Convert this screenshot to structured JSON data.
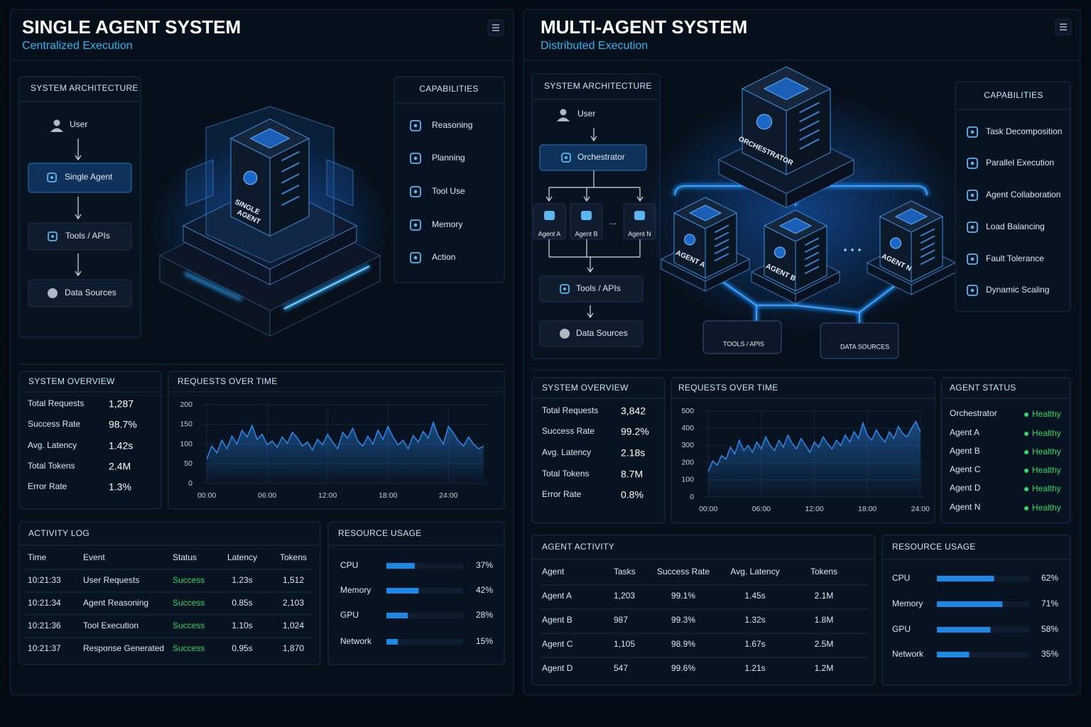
{
  "left": {
    "title": "SINGLE AGENT SYSTEM",
    "subtitle": "Centralized Execution",
    "architecture": {
      "title": "SYSTEM ARCHITECTURE",
      "nodes": [
        "User",
        "Single Agent",
        "Tools / APIs",
        "Data Sources"
      ]
    },
    "illustration": {
      "labels": [
        "SINGLE",
        "AGENT"
      ]
    },
    "capabilities": {
      "title": "CAPABILITIES",
      "items": [
        "Reasoning",
        "Planning",
        "Tool Use",
        "Memory",
        "Action"
      ]
    },
    "overview": {
      "title": "SYSTEM OVERVIEW",
      "rows": [
        [
          "Total Requests",
          "1,287"
        ],
        [
          "Success Rate",
          "98.7%"
        ],
        [
          "Avg. Latency",
          "1.42s"
        ],
        [
          "Total Tokens",
          "2.4M"
        ],
        [
          "Error Rate",
          "1.3%"
        ]
      ]
    },
    "requests_over_time": {
      "type": "line",
      "title": "REQUESTS OVER TIME",
      "color": "#2f8df5",
      "x": [
        0,
        0.5,
        1,
        1.5,
        2,
        2.5,
        3,
        3.5,
        4,
        4.5,
        5,
        5.5,
        6,
        6.5,
        7,
        7.5,
        8,
        8.5,
        9,
        9.5,
        10,
        10.5,
        11,
        11.5,
        12,
        12.5,
        13,
        13.5,
        14,
        14.5,
        15,
        15.5,
        16,
        16.5,
        17,
        17.5,
        18,
        18.5,
        19,
        19.5,
        20,
        20.5,
        21,
        21.5,
        22,
        22.5,
        23,
        23.5,
        24,
        24.5,
        25,
        25.5,
        26,
        26.5,
        27,
        27.5
      ],
      "values": [
        62,
        95,
        78,
        110,
        88,
        120,
        100,
        135,
        118,
        147,
        112,
        125,
        98,
        108,
        92,
        118,
        102,
        130,
        115,
        95,
        105,
        85,
        112,
        98,
        125,
        105,
        88,
        130,
        115,
        140,
        108,
        95,
        120,
        100,
        135,
        112,
        145,
        118,
        98,
        110,
        88,
        122,
        105,
        132,
        115,
        155,
        120,
        100,
        145,
        128,
        108,
        95,
        118,
        100,
        88,
        95
      ],
      "xlim": [
        -0.5,
        28
      ],
      "ylim": [
        0,
        200
      ],
      "yticks": [
        0,
        50,
        100,
        150,
        200
      ],
      "xticks": [
        {
          "value": 0,
          "label": "00:00"
        },
        {
          "value": 6,
          "label": "06:00"
        },
        {
          "value": 12,
          "label": "12:00"
        },
        {
          "value": 18,
          "label": "18:00"
        },
        {
          "value": 24,
          "label": "24:00"
        }
      ]
    },
    "activity_log": {
      "title": "ACTIVITY LOG",
      "columns": [
        "Time",
        "Event",
        "Status",
        "Latency",
        "Tokens"
      ],
      "rows": [
        [
          "10:21:33",
          "User Requests",
          "Success",
          "1.23s",
          "1,512"
        ],
        [
          "10:21:34",
          "Agent Reasoning",
          "Success",
          "0.85s",
          "2,103"
        ],
        [
          "10:21:36",
          "Tool Execution",
          "Success",
          "1.10s",
          "1,024"
        ],
        [
          "10:21:37",
          "Response Generated",
          "Success",
          "0.95s",
          "1,870"
        ]
      ]
    },
    "resource_usage": {
      "type": "bar",
      "title": "RESOURCE USAGE",
      "color": "#1e88e5",
      "categories": [
        "CPU",
        "Memory",
        "GPU",
        "Network"
      ],
      "values": [
        37,
        42,
        28,
        15
      ],
      "value_labels": [
        "37%",
        "42%",
        "28%",
        "15%"
      ],
      "xlim": [
        0,
        100
      ]
    }
  },
  "right": {
    "title": "MULTI-AGENT SYSTEM",
    "subtitle": "Distributed Execution",
    "architecture": {
      "title": "SYSTEM ARCHITECTURE",
      "nodes": [
        "User",
        "Orchestrator",
        "Agent A",
        "Agent B",
        "...",
        "Agent N",
        "Tools / APIs",
        "Data Sources"
      ]
    },
    "illustration": {
      "labels": [
        "ORCHESTRATOR",
        "AGENT A",
        "AGENT B",
        "AGENT N",
        "TOOLS / APIS",
        "DATA SOURCES"
      ]
    },
    "capabilities": {
      "title": "CAPABILITIES",
      "items": [
        "Task Decomposition",
        "Parallel Execution",
        "Agent Collaboration",
        "Load Balancing",
        "Fault Tolerance",
        "Dynamic Scaling"
      ]
    },
    "overview": {
      "title": "SYSTEM OVERVIEW",
      "rows": [
        [
          "Total Requests",
          "3,842"
        ],
        [
          "Success Rate",
          "99.2%"
        ],
        [
          "Avg. Latency",
          "2.18s"
        ],
        [
          "Total Tokens",
          "8.7M"
        ],
        [
          "Error Rate",
          "0.8%"
        ]
      ]
    },
    "requests_over_time": {
      "type": "line",
      "title": "REQUESTS OVER TIME",
      "color": "#2f8df5",
      "x": [
        0,
        0.5,
        1,
        1.5,
        2,
        2.5,
        3,
        3.5,
        4,
        4.5,
        5,
        5.5,
        6,
        6.5,
        7,
        7.5,
        8,
        8.5,
        9,
        9.5,
        10,
        10.5,
        11,
        11.5,
        12,
        12.5,
        13,
        13.5,
        14,
        14.5,
        15,
        15.5,
        16,
        16.5,
        17,
        17.5,
        18,
        18.5,
        19,
        19.5,
        20,
        20.5,
        21,
        21.5,
        22,
        22.5,
        23,
        23.5,
        24
      ],
      "values": [
        150,
        210,
        185,
        240,
        220,
        290,
        250,
        330,
        270,
        300,
        260,
        320,
        280,
        350,
        300,
        270,
        330,
        290,
        360,
        310,
        280,
        340,
        300,
        260,
        320,
        290,
        350,
        310,
        280,
        330,
        300,
        360,
        320,
        380,
        340,
        430,
        360,
        330,
        390,
        350,
        320,
        380,
        340,
        410,
        370,
        350,
        400,
        440,
        380
      ],
      "xlim": [
        -0.5,
        24.5
      ],
      "ylim": [
        0,
        500
      ],
      "yticks": [
        0,
        100,
        200,
        300,
        400,
        500
      ],
      "xticks": [
        {
          "value": 0,
          "label": "00:00"
        },
        {
          "value": 6,
          "label": "06:00"
        },
        {
          "value": 12,
          "label": "12:00"
        },
        {
          "value": 18,
          "label": "18:00"
        },
        {
          "value": 24,
          "label": "24:00"
        }
      ]
    },
    "agent_status": {
      "title": "AGENT STATUS",
      "rows": [
        [
          "Orchestrator",
          "Healthy"
        ],
        [
          "Agent A",
          "Healthy"
        ],
        [
          "Agent B",
          "Healthy"
        ],
        [
          "Agent C",
          "Healthy"
        ],
        [
          "Agent D",
          "Healthy"
        ],
        [
          "Agent N",
          "Healthy"
        ]
      ]
    },
    "agent_activity": {
      "title": "AGENT ACTIVITY",
      "columns": [
        "Agent",
        "Tasks",
        "Success Rate",
        "Avg. Latency",
        "Tokens"
      ],
      "rows": [
        [
          "Agent A",
          "1,203",
          "99.1%",
          "1.45s",
          "2.1M"
        ],
        [
          "Agent B",
          "987",
          "99.3%",
          "1.32s",
          "1.8M"
        ],
        [
          "Agent C",
          "1,105",
          "98.9%",
          "1.67s",
          "2.5M"
        ],
        [
          "Agent D",
          "547",
          "99.6%",
          "1.21s",
          "1.2M"
        ]
      ]
    },
    "resource_usage": {
      "type": "bar",
      "title": "RESOURCE USAGE",
      "color": "#1e88e5",
      "categories": [
        "CPU",
        "Memory",
        "GPU",
        "Network"
      ],
      "values": [
        62,
        71,
        58,
        35
      ],
      "value_labels": [
        "62%",
        "71%",
        "58%",
        "35%"
      ],
      "xlim": [
        0,
        100
      ]
    }
  }
}
